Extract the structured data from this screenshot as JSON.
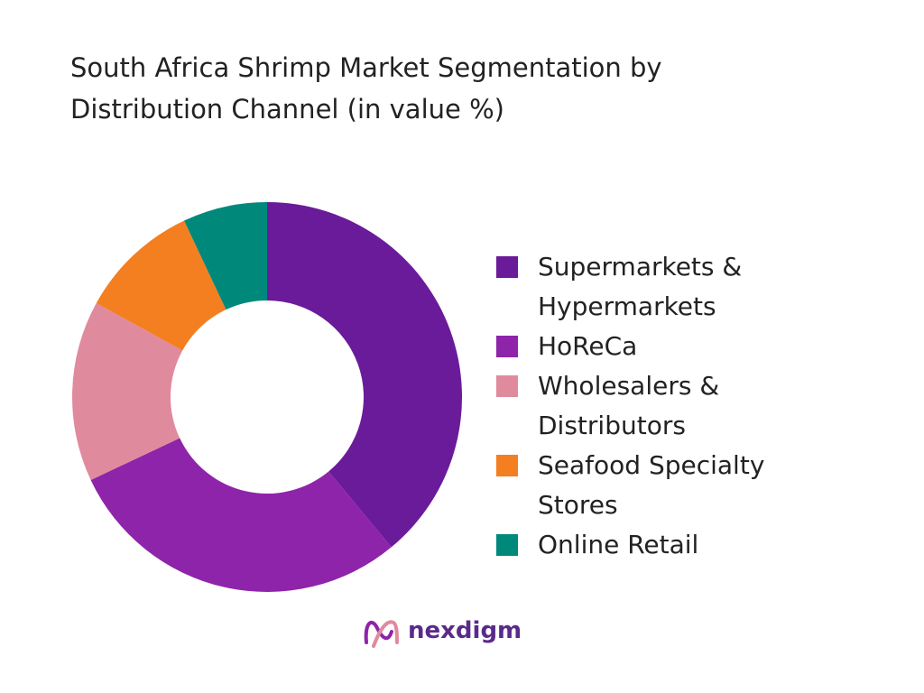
{
  "chart_data": {
    "type": "donut",
    "title": "South Africa Shrimp Market Segmentation by Distribution Channel (in value %)",
    "categories": [
      "Supermarkets & Hypermarkets",
      "HoReCa",
      "Wholesalers & Distributors",
      "Seafood Specialty Stores",
      "Online Retail"
    ],
    "values": [
      39,
      29,
      15,
      10,
      7
    ],
    "colors": [
      "#6a1b9a",
      "#8e24aa",
      "#e08a9e",
      "#f47f20",
      "#00897b"
    ],
    "legend": "right",
    "logo": "nexdigm"
  }
}
